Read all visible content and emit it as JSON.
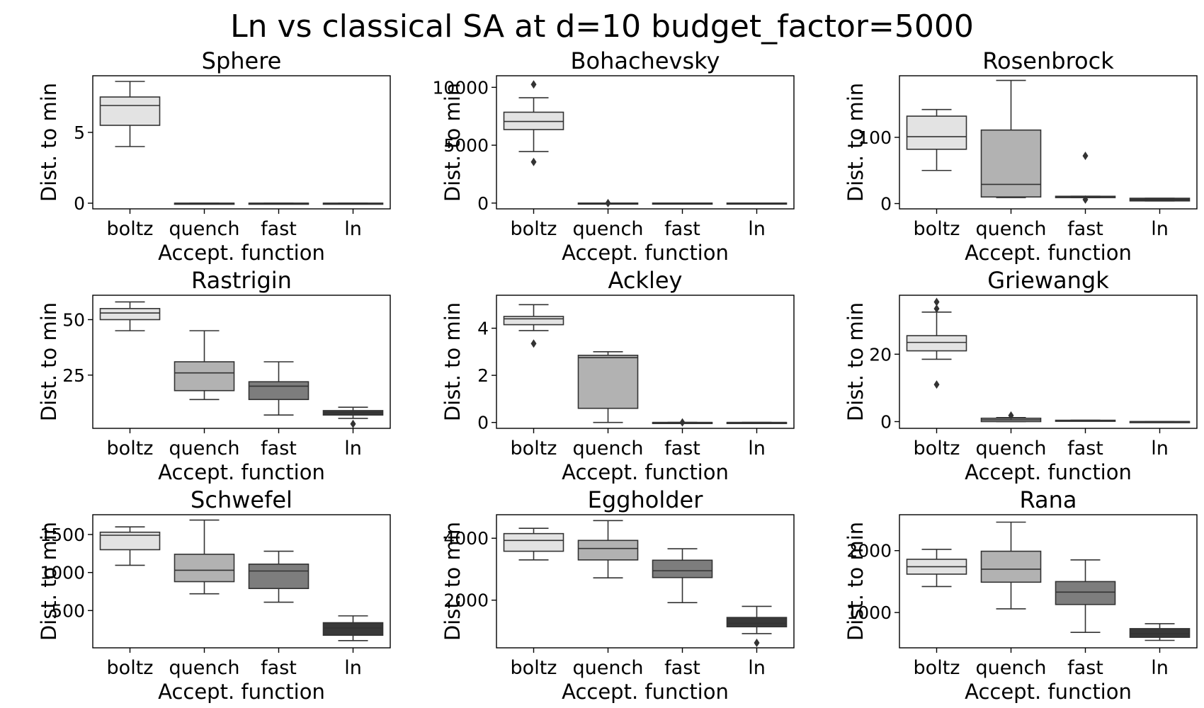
{
  "figure": {
    "title": "Ln vs classical SA at d=10 budget_factor=5000",
    "colors": {
      "boltz": "#e3e3e3",
      "quench": "#b2b2b2",
      "fast": "#7d7d7d",
      "ln": "#393939"
    }
  },
  "chart_data": [
    {
      "type": "box",
      "title": "Sphere",
      "xlabel": "Accept. function",
      "ylabel": "Dist. to min",
      "categories": [
        "boltz",
        "quench",
        "fast",
        "ln"
      ],
      "ylim": [
        -0.4,
        9.0
      ],
      "yticks": [
        0,
        5
      ],
      "boxes": [
        {
          "name": "boltz",
          "whislo": 4.0,
          "q1": 5.5,
          "med": 6.9,
          "q3": 7.5,
          "whishi": 8.6,
          "fliers": []
        },
        {
          "name": "quench",
          "whislo": 0.0,
          "q1": 0.0,
          "med": 0.0,
          "q3": 0.0,
          "whishi": 0.0,
          "fliers": []
        },
        {
          "name": "fast",
          "whislo": 0.0,
          "q1": 0.0,
          "med": 0.0,
          "q3": 0.0,
          "whishi": 0.0,
          "fliers": []
        },
        {
          "name": "ln",
          "whislo": 0.0,
          "q1": 0.0,
          "med": 0.0,
          "q3": 0.0,
          "whishi": 0.0,
          "fliers": []
        }
      ]
    },
    {
      "type": "box",
      "title": "Bohachevsky",
      "xlabel": "Accept. function",
      "ylabel": "Dist. to min",
      "categories": [
        "boltz",
        "quench",
        "fast",
        "ln"
      ],
      "ylim": [
        -500,
        11000
      ],
      "yticks": [
        0,
        5000,
        10000
      ],
      "boxes": [
        {
          "name": "boltz",
          "whislo": 4450,
          "q1": 6350,
          "med": 7050,
          "q3": 7850,
          "whishi": 9100,
          "fliers": [
            3550,
            10250
          ]
        },
        {
          "name": "quench",
          "whislo": 0,
          "q1": 0,
          "med": 0,
          "q3": 0,
          "whishi": 0,
          "fliers": [
            0
          ]
        },
        {
          "name": "fast",
          "whislo": 0,
          "q1": 0,
          "med": 0,
          "q3": 0,
          "whishi": 0,
          "fliers": []
        },
        {
          "name": "ln",
          "whislo": 0,
          "q1": 0,
          "med": 0,
          "q3": 0,
          "whishi": 0,
          "fliers": []
        }
      ]
    },
    {
      "type": "box",
      "title": "Rosenbrock",
      "xlabel": "Accept. function",
      "ylabel": "Dist. to min",
      "categories": [
        "boltz",
        "quench",
        "fast",
        "ln"
      ],
      "ylim": [
        -8,
        193
      ],
      "yticks": [
        0,
        100
      ],
      "boxes": [
        {
          "name": "boltz",
          "whislo": 50,
          "q1": 82,
          "med": 101,
          "q3": 132,
          "whishi": 142,
          "fliers": []
        },
        {
          "name": "quench",
          "whislo": 9,
          "q1": 10,
          "med": 29,
          "q3": 111,
          "whishi": 186,
          "fliers": []
        },
        {
          "name": "fast",
          "whislo": 9,
          "q1": 9,
          "med": 10,
          "q3": 11,
          "whishi": 11,
          "fliers": [
            72,
            6
          ]
        },
        {
          "name": "ln",
          "whislo": 4,
          "q1": 4,
          "med": 6,
          "q3": 8,
          "whishi": 8,
          "fliers": []
        }
      ]
    },
    {
      "type": "box",
      "title": "Rastrigin",
      "xlabel": "Accept. function",
      "ylabel": "Dist. to min",
      "categories": [
        "boltz",
        "quench",
        "fast",
        "ln"
      ],
      "ylim": [
        1,
        61
      ],
      "yticks": [
        25,
        50
      ],
      "boxes": [
        {
          "name": "boltz",
          "whislo": 45,
          "q1": 50,
          "med": 53,
          "q3": 55,
          "whishi": 58,
          "fliers": []
        },
        {
          "name": "quench",
          "whislo": 14,
          "q1": 18,
          "med": 26,
          "q3": 31,
          "whishi": 45,
          "fliers": []
        },
        {
          "name": "fast",
          "whislo": 7,
          "q1": 14,
          "med": 20,
          "q3": 22,
          "whishi": 31,
          "fliers": []
        },
        {
          "name": "ln",
          "whislo": 5.5,
          "q1": 7,
          "med": 8,
          "q3": 9,
          "whishi": 10.5,
          "fliers": [
            3
          ]
        }
      ]
    },
    {
      "type": "box",
      "title": "Ackley",
      "xlabel": "Accept. function",
      "ylabel": "Dist. to min",
      "categories": [
        "boltz",
        "quench",
        "fast",
        "ln"
      ],
      "ylim": [
        -0.25,
        5.4
      ],
      "yticks": [
        0,
        2,
        4
      ],
      "boxes": [
        {
          "name": "boltz",
          "whislo": 3.9,
          "q1": 4.15,
          "med": 4.4,
          "q3": 4.5,
          "whishi": 5.0,
          "fliers": [
            3.35
          ]
        },
        {
          "name": "quench",
          "whislo": 0.0,
          "q1": 0.6,
          "med": 2.75,
          "q3": 2.85,
          "whishi": 3.0,
          "fliers": []
        },
        {
          "name": "fast",
          "whislo": 0.0,
          "q1": 0.0,
          "med": 0.0,
          "q3": 0.0,
          "whishi": 0.0,
          "fliers": [
            0.0
          ]
        },
        {
          "name": "ln",
          "whislo": 0.0,
          "q1": 0.0,
          "med": 0.0,
          "q3": 0.0,
          "whishi": 0.0,
          "fliers": []
        }
      ]
    },
    {
      "type": "box",
      "title": "Griewangk",
      "xlabel": "Accept. function",
      "ylabel": "Dist. to min",
      "categories": [
        "boltz",
        "quench",
        "fast",
        "ln"
      ],
      "ylim": [
        -2,
        37.5
      ],
      "yticks": [
        0,
        20
      ],
      "boxes": [
        {
          "name": "boltz",
          "whislo": 18.5,
          "q1": 21,
          "med": 23.5,
          "q3": 25.5,
          "whishi": 32.5,
          "fliers": [
            11,
            33.5,
            35.5
          ]
        },
        {
          "name": "quench",
          "whislo": 0,
          "q1": 0,
          "med": 0.5,
          "q3": 1,
          "whishi": 1.2,
          "fliers": [
            1.8
          ]
        },
        {
          "name": "fast",
          "whislo": 0.2,
          "q1": 0.2,
          "med": 0.3,
          "q3": 0.4,
          "whishi": 0.4,
          "fliers": []
        },
        {
          "name": "ln",
          "whislo": 0,
          "q1": 0,
          "med": 0,
          "q3": 0,
          "whishi": 0,
          "fliers": []
        }
      ]
    },
    {
      "type": "box",
      "title": "Schwefel",
      "xlabel": "Accept. function",
      "ylabel": "Dist. to min",
      "categories": [
        "boltz",
        "quench",
        "fast",
        "ln"
      ],
      "ylim": [
        10,
        1760
      ],
      "yticks": [
        500,
        1000,
        1500
      ],
      "boxes": [
        {
          "name": "boltz",
          "whislo": 1095,
          "q1": 1300,
          "med": 1490,
          "q3": 1530,
          "whishi": 1600,
          "fliers": []
        },
        {
          "name": "quench",
          "whislo": 720,
          "q1": 880,
          "med": 1030,
          "q3": 1240,
          "whishi": 1690,
          "fliers": []
        },
        {
          "name": "fast",
          "whislo": 610,
          "q1": 790,
          "med": 1020,
          "q3": 1110,
          "whishi": 1280,
          "fliers": []
        },
        {
          "name": "ln",
          "whislo": 105,
          "q1": 175,
          "med": 270,
          "q3": 340,
          "whishi": 430,
          "fliers": []
        }
      ]
    },
    {
      "type": "box",
      "title": "Eggholder",
      "xlabel": "Accept. function",
      "ylabel": "Dist. to min",
      "categories": [
        "boltz",
        "quench",
        "fast",
        "ln"
      ],
      "ylim": [
        460,
        4760
      ],
      "yticks": [
        2000,
        4000
      ],
      "boxes": [
        {
          "name": "boltz",
          "whislo": 3300,
          "q1": 3580,
          "med": 3930,
          "q3": 4150,
          "whishi": 4320,
          "fliers": []
        },
        {
          "name": "quench",
          "whislo": 2720,
          "q1": 3300,
          "med": 3670,
          "q3": 3930,
          "whishi": 4570,
          "fliers": []
        },
        {
          "name": "fast",
          "whislo": 1920,
          "q1": 2730,
          "med": 2950,
          "q3": 3290,
          "whishi": 3660,
          "fliers": []
        },
        {
          "name": "ln",
          "whislo": 920,
          "q1": 1140,
          "med": 1250,
          "q3": 1440,
          "whishi": 1800,
          "fliers": [
            620
          ]
        }
      ]
    },
    {
      "type": "box",
      "title": "Rana",
      "xlabel": "Accept. function",
      "ylabel": "Dist. to min",
      "categories": [
        "boltz",
        "quench",
        "fast",
        "ln"
      ],
      "ylim": [
        430,
        2580
      ],
      "yticks": [
        1000,
        2000
      ],
      "boxes": [
        {
          "name": "boltz",
          "whislo": 1420,
          "q1": 1620,
          "med": 1740,
          "q3": 1860,
          "whishi": 2020,
          "fliers": []
        },
        {
          "name": "quench",
          "whislo": 1060,
          "q1": 1490,
          "med": 1700,
          "q3": 1990,
          "whishi": 2460,
          "fliers": []
        },
        {
          "name": "fast",
          "whislo": 680,
          "q1": 1130,
          "med": 1330,
          "q3": 1500,
          "whishi": 1850,
          "fliers": []
        },
        {
          "name": "ln",
          "whislo": 550,
          "q1": 600,
          "med": 660,
          "q3": 740,
          "whishi": 820,
          "fliers": []
        }
      ]
    }
  ]
}
